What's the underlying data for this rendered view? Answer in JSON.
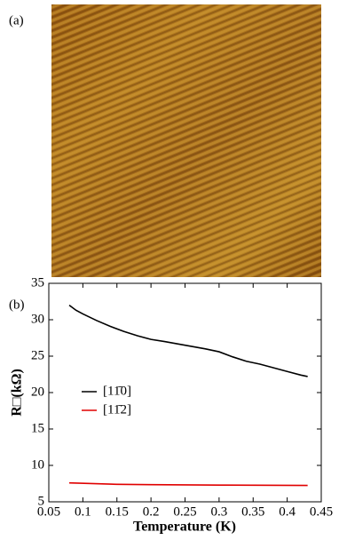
{
  "figure": {
    "panel_labels": [
      "(a)",
      "(b)"
    ]
  },
  "chart_data": {
    "type": "line",
    "x_label": "Temperature (K)",
    "y_label": "R□(kΩ)",
    "xlim": [
      0.05,
      0.45
    ],
    "xticks": [
      0.05,
      0.1,
      0.15,
      0.2,
      0.25,
      0.3,
      0.35,
      0.4,
      0.45
    ],
    "ylim": [
      5,
      35
    ],
    "yticks": [
      5,
      10,
      15,
      20,
      25,
      30,
      35
    ],
    "grid": false,
    "legend": "left",
    "series": [
      {
        "name": "[11̄0]",
        "color": "#000000",
        "x": [
          0.08,
          0.09,
          0.1,
          0.12,
          0.14,
          0.16,
          0.18,
          0.2,
          0.22,
          0.25,
          0.28,
          0.3,
          0.32,
          0.34,
          0.36,
          0.38,
          0.4,
          0.42,
          0.43
        ],
        "values": [
          32,
          31.3,
          30.8,
          29.9,
          29.1,
          28.4,
          27.8,
          27.3,
          27.0,
          26.5,
          26.0,
          25.6,
          24.9,
          24.3,
          23.9,
          23.4,
          22.9,
          22.4,
          22.2
        ]
      },
      {
        "name": "[11̄2]",
        "color": "#e00000",
        "x": [
          0.08,
          0.15,
          0.2,
          0.3,
          0.43
        ],
        "values": [
          7.6,
          7.4,
          7.35,
          7.3,
          7.25
        ]
      }
    ]
  }
}
